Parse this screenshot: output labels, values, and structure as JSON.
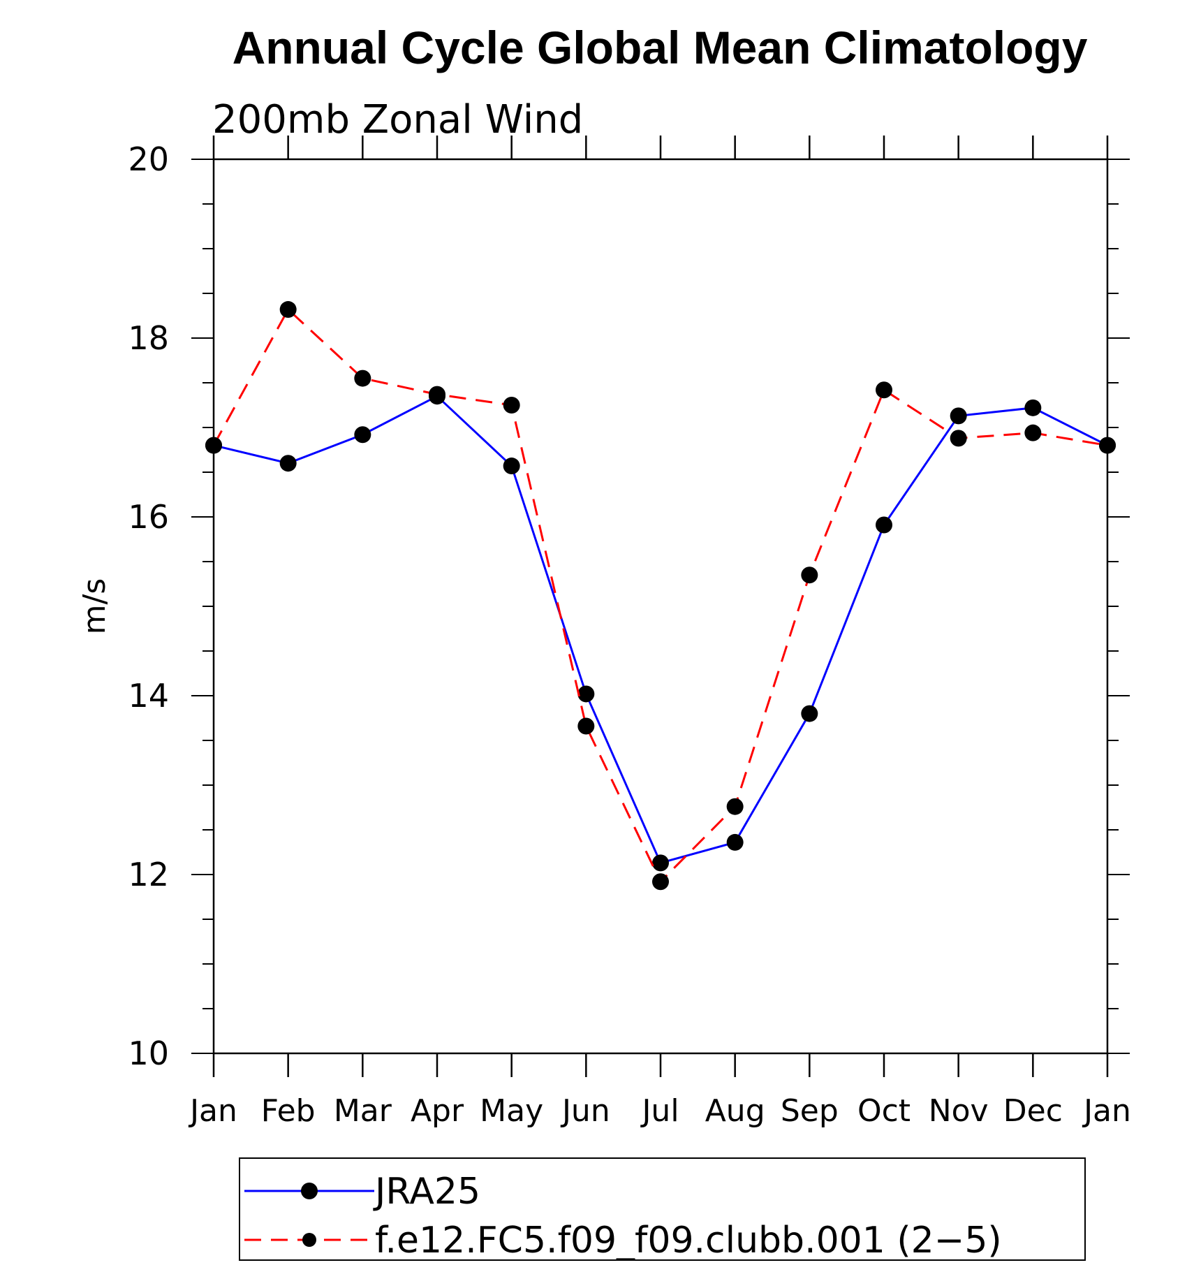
{
  "chart_data": {
    "type": "line",
    "title": "Annual Cycle Global Mean Climatology",
    "subtitle": "200mb  Zonal Wind",
    "ylabel": "m/s",
    "xlabel": "",
    "categories": [
      "Jan",
      "Feb",
      "Mar",
      "Apr",
      "May",
      "Jun",
      "Jul",
      "Aug",
      "Sep",
      "Oct",
      "Nov",
      "Dec",
      "Jan"
    ],
    "ylim": [
      10,
      20
    ],
    "yticks": [
      "10",
      "12",
      "14",
      "16",
      "18",
      "20"
    ],
    "grid": false,
    "legend_position": "bottom",
    "series": [
      {
        "name": "JRA25",
        "color": "#0000ff",
        "dash": "solid",
        "marker": "filled-circle",
        "values": [
          16.8,
          16.6,
          16.92,
          17.35,
          16.57,
          14.02,
          12.13,
          12.36,
          13.8,
          15.91,
          17.13,
          17.22,
          16.8
        ]
      },
      {
        "name": "f.e12.FC5.f09_f09.clubb.001 (2−5)",
        "color": "#ff0000",
        "dash": "dashed",
        "marker": "filled-circle",
        "values": [
          16.8,
          18.32,
          17.55,
          17.37,
          17.25,
          13.66,
          11.92,
          12.76,
          15.35,
          17.42,
          16.88,
          16.94,
          16.8
        ]
      }
    ]
  }
}
